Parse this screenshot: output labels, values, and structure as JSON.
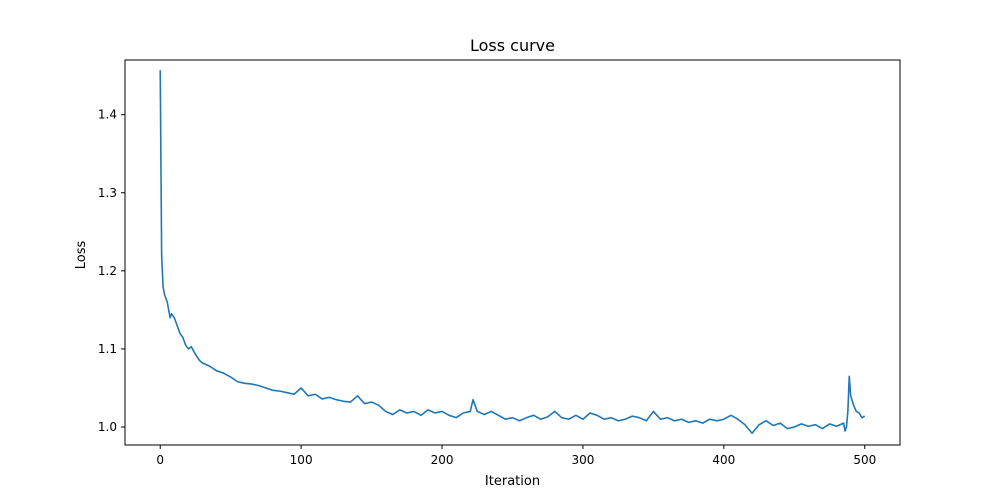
{
  "chart_data": {
    "type": "line",
    "title": "Loss curve",
    "xlabel": "Iteration",
    "ylabel": "Loss",
    "xlim": [
      -25,
      525
    ],
    "ylim": [
      0.977,
      1.47
    ],
    "xticks": [
      0,
      100,
      200,
      300,
      400,
      500
    ],
    "xtick_labels": [
      "0",
      "100",
      "200",
      "300",
      "400",
      "500"
    ],
    "yticks": [
      1.0,
      1.1,
      1.2,
      1.3,
      1.4
    ],
    "ytick_labels": [
      "1.0",
      "1.1",
      "1.2",
      "1.3",
      "1.4"
    ],
    "grid": false,
    "series": [
      {
        "color": "#1f77b4",
        "x": [
          0,
          1,
          2,
          3,
          4,
          5,
          6,
          7,
          8,
          10,
          12,
          14,
          16,
          18,
          20,
          22,
          25,
          28,
          30,
          35,
          40,
          45,
          50,
          55,
          60,
          65,
          70,
          75,
          80,
          85,
          90,
          95,
          100,
          105,
          110,
          115,
          120,
          125,
          130,
          135,
          140,
          145,
          150,
          155,
          160,
          165,
          170,
          175,
          180,
          185,
          190,
          195,
          200,
          205,
          210,
          215,
          220,
          222,
          225,
          230,
          235,
          240,
          245,
          250,
          255,
          260,
          265,
          270,
          275,
          280,
          285,
          290,
          295,
          300,
          305,
          310,
          315,
          320,
          325,
          330,
          335,
          340,
          345,
          350,
          355,
          360,
          365,
          370,
          375,
          380,
          385,
          390,
          395,
          400,
          405,
          410,
          415,
          420,
          425,
          430,
          435,
          440,
          445,
          450,
          455,
          460,
          465,
          470,
          475,
          480,
          485,
          486,
          487,
          488,
          489,
          490,
          492,
          494,
          496,
          498,
          500
        ],
        "y": [
          1.457,
          1.22,
          1.18,
          1.17,
          1.165,
          1.16,
          1.15,
          1.14,
          1.145,
          1.14,
          1.13,
          1.12,
          1.115,
          1.105,
          1.1,
          1.103,
          1.093,
          1.085,
          1.082,
          1.078,
          1.072,
          1.069,
          1.064,
          1.058,
          1.056,
          1.055,
          1.053,
          1.05,
          1.047,
          1.046,
          1.044,
          1.042,
          1.05,
          1.04,
          1.042,
          1.036,
          1.038,
          1.035,
          1.033,
          1.032,
          1.04,
          1.03,
          1.032,
          1.028,
          1.02,
          1.016,
          1.022,
          1.018,
          1.02,
          1.015,
          1.022,
          1.018,
          1.02,
          1.015,
          1.012,
          1.018,
          1.02,
          1.035,
          1.02,
          1.016,
          1.02,
          1.015,
          1.01,
          1.012,
          1.008,
          1.012,
          1.015,
          1.01,
          1.013,
          1.02,
          1.012,
          1.01,
          1.015,
          1.01,
          1.018,
          1.015,
          1.01,
          1.012,
          1.008,
          1.01,
          1.014,
          1.012,
          1.008,
          1.02,
          1.01,
          1.012,
          1.008,
          1.01,
          1.006,
          1.008,
          1.005,
          1.01,
          1.008,
          1.01,
          1.015,
          1.01,
          1.003,
          0.992,
          1.003,
          1.008,
          1.002,
          1.005,
          0.998,
          1.0,
          1.004,
          1.001,
          1.003,
          0.998,
          1.004,
          1.001,
          1.005,
          0.995,
          1.0,
          1.02,
          1.065,
          1.04,
          1.028,
          1.02,
          1.018,
          1.012,
          1.014
        ]
      }
    ]
  }
}
